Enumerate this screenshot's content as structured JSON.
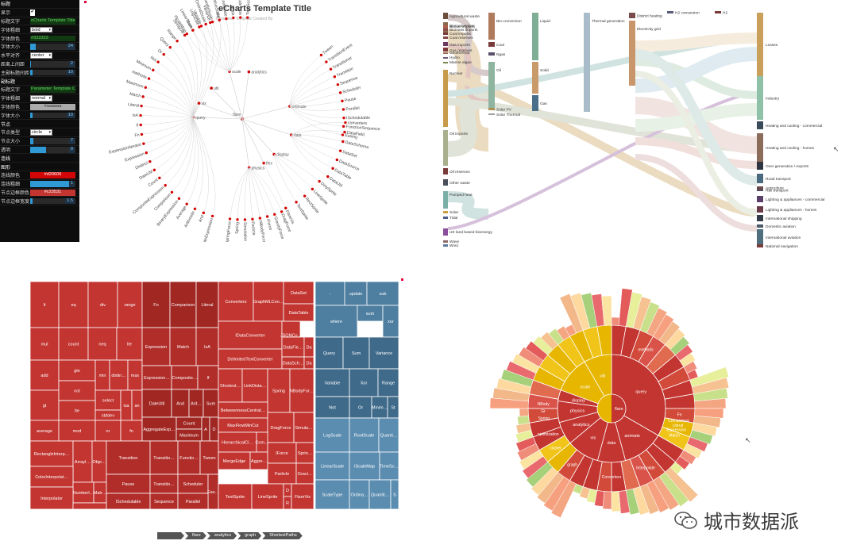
{
  "colors": {
    "accent_red": "#d20606",
    "panel_bg": "#0d0d0d",
    "slider_blue": "#2f9ad6",
    "treemap_red": "#c23531",
    "treemap_blue": "#4e7ea0",
    "sunburst_red": "#c23531",
    "sunburst_yellow": "#e6b600"
  },
  "panel": {
    "rows": [
      {
        "label": "标题",
        "kind": "section"
      },
      {
        "label": "显示",
        "kind": "check",
        "value": "✔"
      },
      {
        "label": "标题文字",
        "kind": "text",
        "value": "eCharts Template Title"
      },
      {
        "label": "字体粗细",
        "kind": "select",
        "value": "bold"
      },
      {
        "label": "字体颜色",
        "kind": "text",
        "value": "#333333"
      },
      {
        "label": "字体大小",
        "kind": "slider",
        "value": "24",
        "level": 0.12
      },
      {
        "label": "水平对齐",
        "kind": "select",
        "value": "center"
      },
      {
        "label": "距离上间距",
        "kind": "slider",
        "value": "2",
        "level": 0.02
      },
      {
        "label": "主副标题间距",
        "kind": "slider",
        "value": "10",
        "level": 0.06
      },
      {
        "label": "副标题",
        "kind": "section"
      },
      {
        "label": "标题文字",
        "kind": "text",
        "value": "Parameter Template C"
      },
      {
        "label": "字体粗细",
        "kind": "select",
        "value": "normal"
      },
      {
        "label": "字体颜色",
        "kind": "colorbox",
        "value": "#aaaaaa",
        "color": "#aaaaaa"
      },
      {
        "label": "字体大小",
        "kind": "slider",
        "value": "10",
        "level": 0.05
      },
      {
        "label": "节点",
        "kind": "section"
      },
      {
        "label": "节点类型",
        "kind": "select",
        "value": "circle"
      },
      {
        "label": "节点大小",
        "kind": "slider",
        "value": "7",
        "level": 0.07
      },
      {
        "label": "透明",
        "kind": "slider",
        "value": "0",
        "level": 0.35
      },
      {
        "label": "连线",
        "kind": "section"
      },
      {
        "label": "图形",
        "kind": "section"
      },
      {
        "label": "连线颜色",
        "kind": "colorbox",
        "value": "#d20606",
        "color": "#d20606"
      },
      {
        "label": "连线粗细",
        "kind": "slider",
        "value": "1",
        "level": 0.9
      },
      {
        "label": "节点边框颜色",
        "kind": "colorbox",
        "value": "#c23531",
        "color": "#c23531"
      },
      {
        "label": "节点边框宽度",
        "kind": "slider",
        "value": "1.5",
        "level": 0.06
      }
    ]
  },
  "tree": {
    "title": "eCharts Template Title",
    "subtitle": "Parameter Template Created By"
  },
  "chart_data": [
    {
      "type": "tree",
      "layout": "radial",
      "root": "flare",
      "branches": [
        {
          "name": "animate",
          "leaves": [
            "Tween",
            "TransitionEvent",
            "Transitioner",
            "Transition",
            "Sequence",
            "Scheduler",
            "Pause",
            "Parallel",
            "ISchedulable",
            "FunctionSequence",
            "Easing"
          ]
        },
        {
          "name": "data",
          "leaves": [
            "converters",
            "DataField",
            "DataSchema",
            "DataSet",
            "DataSource",
            "DataTable",
            "DataUtil"
          ]
        },
        {
          "name": "display",
          "leaves": [
            "DirtySprite",
            "LineSprite",
            "RectSprite",
            "TextSprite"
          ]
        },
        {
          "name": "flex",
          "leaves": [
            "FlareVis"
          ]
        },
        {
          "name": "physics",
          "leaves": [
            "DragForce",
            "GravityForce",
            "IForce",
            "NBodyForce",
            "Particle",
            "Simulation",
            "Spring",
            "SpringForce"
          ]
        },
        {
          "name": "query",
          "leaves": [
            "AggregateExpression",
            "And",
            "Arithmetic",
            "Average",
            "BinaryExpression",
            "Comparison",
            "CompositeExpression",
            "Count",
            "DateUtil",
            "Distinct",
            "Expression",
            "ExpressionIterator",
            "Fn",
            "If",
            "IsA",
            "Literal",
            "Match",
            "Maximum",
            "methods",
            "Minimum",
            "Not",
            "Or",
            "Query",
            "Range",
            "StringUtil",
            "Sum",
            "Variable",
            "Variance",
            "Xor"
          ]
        },
        {
          "name": "scale",
          "leaves": [
            "IScaleMap",
            "LinearScale",
            "LogScale",
            "OrdinalScale",
            "QuantileScale",
            "QuantitativeScale",
            "RootScale",
            "Scale",
            "ScaleType",
            "TimeScale"
          ]
        },
        {
          "name": "util",
          "leaves": []
        },
        {
          "name": "vis",
          "leaves": []
        },
        {
          "name": "analytics",
          "leaves": []
        }
      ]
    },
    {
      "type": "sankey",
      "nodes_left": [
        "Agricultural waste",
        "Bio-conversion",
        "Biofuel imports",
        "Biomass imports",
        "Coal imports",
        "Coal reserves",
        "Gas imports",
        "Gas reserves",
        "Geothermal",
        "Hydro",
        "Marine algae",
        "Nuclear",
        "Oil imports",
        "Oil reserves",
        "Other waste",
        "Pumped heat",
        "Solar",
        "Tidal",
        "UK land based bioenergy",
        "Wave",
        "Wind"
      ],
      "nodes_mid": [
        "Coal",
        "Ngas",
        "Oil",
        "Solar PV",
        "Solar Thermal",
        "Liquid",
        "Solid",
        "Gas",
        "Thermal generation",
        "Electricity grid",
        "District heating",
        "H2 conversion",
        "H2"
      ],
      "nodes_right": [
        "Losses",
        "Industry",
        "Heating and cooling - commercial",
        "Heating and cooling - homes",
        "Over generation / exports",
        "Road transport",
        "Agriculture",
        "Rail transport",
        "Lighting & appliances - commercial",
        "Lighting & appliances - homes",
        "International shipping",
        "Domestic aviation",
        "International aviation",
        "National navigation"
      ]
    },
    {
      "type": "treemap",
      "groups": [
        {
          "name": "query",
          "color": "#c23531",
          "cells": [
            "lt",
            "eq",
            "div",
            "range",
            "mul",
            "count",
            "neq",
            "lte",
            "add",
            "gte",
            "min",
            "distinct",
            "max",
            "gt",
            "not",
            "select",
            "isa",
            "an",
            "lte",
            "stddev",
            "sub",
            "average",
            "mod",
            "or",
            "fn",
            "Fn",
            "Comparison",
            "Literal",
            "Expression",
            "Match",
            "IsA",
            "ExpressionIterator",
            "CompositeExpression",
            "If",
            "DateUtil",
            "And",
            "Arithmetic",
            "Sum",
            "AggregateExpression",
            "Count",
            "Maximum",
            "A",
            "D",
            "Transition",
            "Transitioner",
            "Pause",
            "ISchedulable",
            "RectangleInterpolator",
            "ColorInterpolator",
            "Interpolator",
            "ArrayInterpolator",
            "ObjectInterpolator",
            "NumberInterpolator",
            "MatrixInterpolator",
            "TransitionEvent",
            "FunctionSequence",
            "Tween",
            "Scheduler",
            "Sequence",
            "Parallel",
            "Easing"
          ]
        },
        {
          "name": "data",
          "color": "#c23531",
          "cells": [
            "Converters",
            "GraphMLConverter",
            "DataSet",
            "IDataConverter",
            "JSONConverter",
            "DataTable",
            "DelimitedTextConverter",
            "DataField",
            "Da",
            "DataSchema",
            "Da",
            "ShortestPaths",
            "LinkDistance",
            "Spring",
            "NBodyForce",
            "BetweennessCentrality",
            "MaxFlowMinCut",
            "DragForce",
            "Simulation",
            "HierarchicalCluster",
            "CommunityStructure",
            "IForce",
            "SpringForce",
            "MergeEdge",
            "AggregateExpression",
            "Particle",
            "GravityForce",
            "TextSprite",
            "LineSprite",
            "D",
            "FlareVis",
            "R"
          ]
        },
        {
          "name": "scale",
          "color": "#4e7ea0",
          "cells": [
            "-",
            "update",
            "sub",
            "sum",
            "where",
            "xor",
            "Query",
            "Sum",
            "Variance",
            "Variable",
            "Xor",
            "Range",
            "Not",
            "Or",
            "Minimum",
            "St",
            "LogScale",
            "RootScale",
            "QuantileScale",
            "LinearScale",
            "IScaleMap",
            "TimeScale",
            "ScaleType",
            "OrdinalScale",
            "QuantitativeScale",
            "S"
          ]
        }
      ],
      "breadcrumb": [
        "",
        "flare",
        "analytics",
        "graph",
        "ShortestPaths"
      ]
    },
    {
      "type": "sunburst",
      "root": "flare",
      "ring1": [
        "query",
        "animate",
        "data",
        "vis",
        "analytics",
        "physics",
        "display",
        "scale",
        "util",
        "flex"
      ],
      "ring1_colors": [
        "#c23531",
        "#c23531",
        "#c23531",
        "#c23531",
        "#c23531",
        "#c23531",
        "#c23531",
        "#e6b600",
        "#e6b600",
        "#e6b600"
      ],
      "ring2": [
        "methods",
        "Fn",
        "Comparison",
        "Literal",
        "Expression",
        "Match",
        "Interpolate",
        "Converters",
        "graph",
        "cluster",
        "optimization",
        "Spring",
        "Gr",
        "NBody"
      ]
    }
  ],
  "watermark": {
    "text": "城市数据派"
  }
}
